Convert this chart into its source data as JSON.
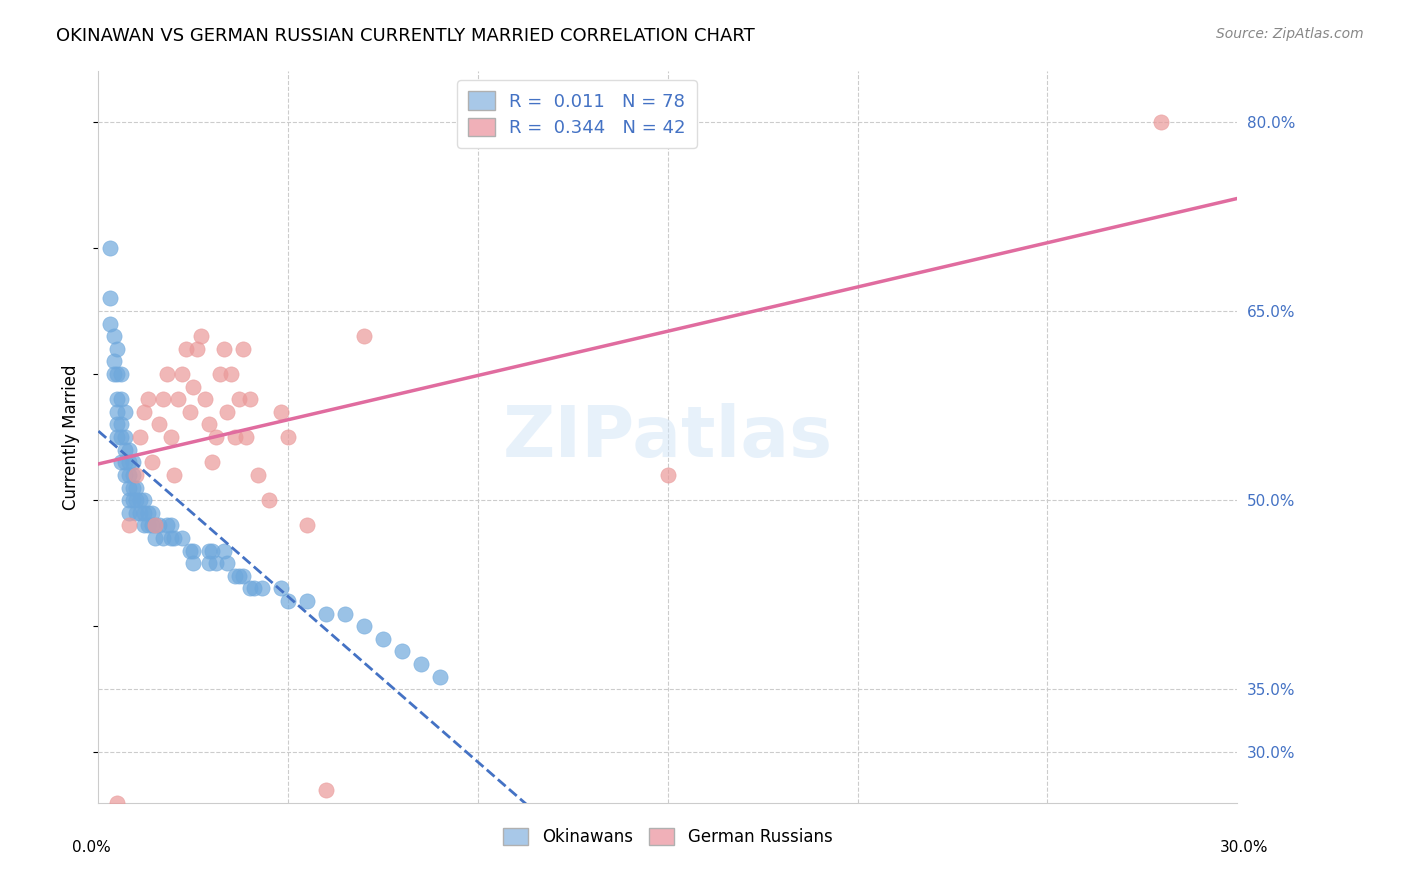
{
  "title": "OKINAWAN VS GERMAN RUSSIAN CURRENTLY MARRIED CORRELATION CHART",
  "source": "Source: ZipAtlas.com",
  "ylabel": "Currently Married",
  "y_tick_vals": [
    0.8,
    0.65,
    0.5,
    0.35,
    0.3
  ],
  "xlim": [
    0.0,
    0.3
  ],
  "ylim": [
    0.26,
    0.84
  ],
  "okinawan_color": "#6fa8dc",
  "german_russian_color": "#ea9999",
  "okinawan_line_color": "#4472c4",
  "german_russian_line_color": "#e06c9f",
  "watermark": "ZIPatlas",
  "okinawan_x": [
    0.003,
    0.003,
    0.003,
    0.004,
    0.004,
    0.004,
    0.005,
    0.005,
    0.005,
    0.005,
    0.005,
    0.005,
    0.006,
    0.006,
    0.006,
    0.006,
    0.006,
    0.007,
    0.007,
    0.007,
    0.007,
    0.007,
    0.008,
    0.008,
    0.008,
    0.008,
    0.008,
    0.008,
    0.009,
    0.009,
    0.009,
    0.009,
    0.01,
    0.01,
    0.01,
    0.011,
    0.011,
    0.012,
    0.012,
    0.012,
    0.013,
    0.013,
    0.014,
    0.014,
    0.015,
    0.015,
    0.016,
    0.017,
    0.018,
    0.019,
    0.019,
    0.02,
    0.022,
    0.024,
    0.025,
    0.025,
    0.029,
    0.029,
    0.03,
    0.031,
    0.033,
    0.034,
    0.036,
    0.037,
    0.038,
    0.04,
    0.041,
    0.043,
    0.048,
    0.05,
    0.055,
    0.06,
    0.065,
    0.07,
    0.075,
    0.08,
    0.085,
    0.09
  ],
  "okinawan_y": [
    0.7,
    0.66,
    0.64,
    0.63,
    0.61,
    0.6,
    0.62,
    0.6,
    0.58,
    0.57,
    0.56,
    0.55,
    0.6,
    0.58,
    0.56,
    0.55,
    0.53,
    0.57,
    0.55,
    0.54,
    0.53,
    0.52,
    0.54,
    0.53,
    0.52,
    0.51,
    0.5,
    0.49,
    0.53,
    0.52,
    0.51,
    0.5,
    0.51,
    0.5,
    0.49,
    0.5,
    0.49,
    0.5,
    0.49,
    0.48,
    0.49,
    0.48,
    0.49,
    0.48,
    0.48,
    0.47,
    0.48,
    0.47,
    0.48,
    0.47,
    0.48,
    0.47,
    0.47,
    0.46,
    0.46,
    0.45,
    0.46,
    0.45,
    0.46,
    0.45,
    0.46,
    0.45,
    0.44,
    0.44,
    0.44,
    0.43,
    0.43,
    0.43,
    0.43,
    0.42,
    0.42,
    0.41,
    0.41,
    0.4,
    0.39,
    0.38,
    0.37,
    0.36
  ],
  "german_russian_x": [
    0.005,
    0.008,
    0.01,
    0.011,
    0.012,
    0.013,
    0.014,
    0.015,
    0.016,
    0.017,
    0.018,
    0.019,
    0.02,
    0.021,
    0.022,
    0.023,
    0.024,
    0.025,
    0.026,
    0.027,
    0.028,
    0.029,
    0.03,
    0.031,
    0.032,
    0.033,
    0.034,
    0.035,
    0.036,
    0.037,
    0.038,
    0.039,
    0.04,
    0.042,
    0.045,
    0.048,
    0.05,
    0.055,
    0.06,
    0.07,
    0.15,
    0.28
  ],
  "german_russian_y": [
    0.26,
    0.48,
    0.52,
    0.55,
    0.57,
    0.58,
    0.53,
    0.48,
    0.56,
    0.58,
    0.6,
    0.55,
    0.52,
    0.58,
    0.6,
    0.62,
    0.57,
    0.59,
    0.62,
    0.63,
    0.58,
    0.56,
    0.53,
    0.55,
    0.6,
    0.62,
    0.57,
    0.6,
    0.55,
    0.58,
    0.62,
    0.55,
    0.58,
    0.52,
    0.5,
    0.57,
    0.55,
    0.48,
    0.27,
    0.63,
    0.52,
    0.8
  ]
}
